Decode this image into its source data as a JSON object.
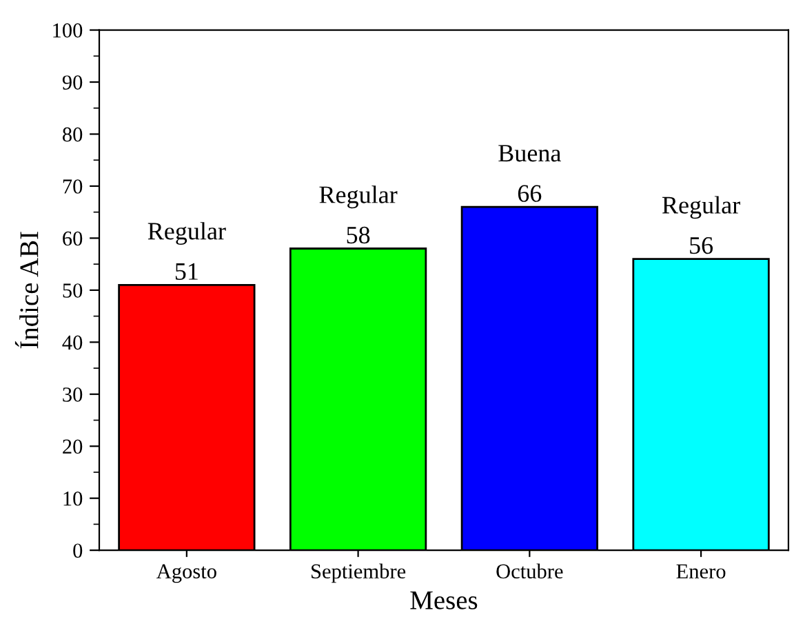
{
  "chart_data": {
    "type": "bar",
    "categories": [
      "Agosto",
      "Septiembre",
      "Octubre",
      "Enero"
    ],
    "values": [
      51,
      58,
      66,
      56
    ],
    "colors": [
      "#ff0000",
      "#00ff00",
      "#0000ff",
      "#00ffff"
    ],
    "data_labels": true,
    "annotations": [
      {
        "text": "Regular",
        "x": "Agosto",
        "y": 51
      },
      {
        "text": "Regular",
        "x": "Septiembre",
        "y": 58
      },
      {
        "text": "Buena",
        "x": "Octubre",
        "y": 66
      },
      {
        "text": "Regular",
        "x": "Enero",
        "y": 56
      }
    ],
    "xlabel": "Meses",
    "ylabel": "Índice ABI",
    "ylim": [
      0,
      100
    ],
    "yticks": [
      0,
      10,
      20,
      30,
      40,
      50,
      60,
      70,
      80,
      90,
      100
    ],
    "grid": false,
    "legend": false
  }
}
